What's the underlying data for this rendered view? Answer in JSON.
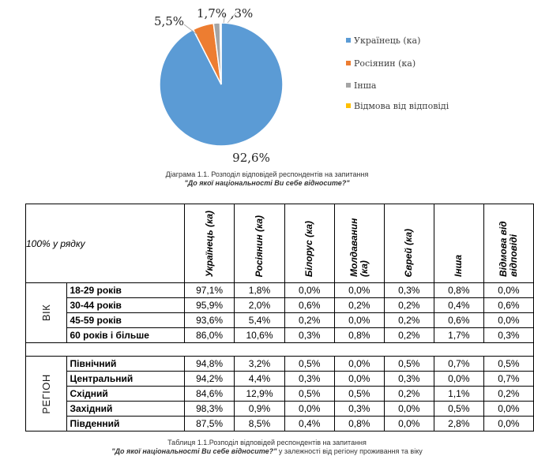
{
  "chart_data": {
    "type": "pie",
    "categories": [
      "Українець (ка)",
      "Росіянин (ка)",
      "Інша",
      "Відмова від відповіді"
    ],
    "values": [
      92.6,
      5.5,
      1.7,
      0.3
    ],
    "value_labels": [
      "92,6%",
      "5,5%",
      "1,7%",
      ",3%"
    ],
    "colors": [
      "#5B9BD5",
      "#ED7D31",
      "#A5A5A5",
      "#FFC000"
    ],
    "legend_position": "right"
  },
  "diagram_caption": {
    "line1": "Діаграма 1.1. Розподіл відповідей респондентів на запитання",
    "line2": "\"До якої національності Ви себе відносите?\""
  },
  "table": {
    "corner": "100%  у рядку",
    "headers": [
      "Українець (ка)",
      "Росіянин (ка)",
      "Білорус (ка)",
      "Молдаванин (ка)",
      "Єврей (ка)",
      "Інша",
      "Відмова від відповіді"
    ],
    "groups": [
      {
        "name": "ВІК",
        "rows": [
          {
            "label": "18-29 років",
            "values": [
              "97,1%",
              "1,8%",
              "0,0%",
              "0,0%",
              "0,3%",
              "0,8%",
              "0,0%"
            ]
          },
          {
            "label": "30-44 років",
            "values": [
              "95,9%",
              "2,0%",
              "0,6%",
              "0,2%",
              "0,2%",
              "0,4%",
              "0,6%"
            ]
          },
          {
            "label": "45-59 років",
            "values": [
              "93,6%",
              "5,4%",
              "0,2%",
              "0,0%",
              "0,2%",
              "0,6%",
              "0,0%"
            ]
          },
          {
            "label": "60 років і більше",
            "values": [
              "86,0%",
              "10,6%",
              "0,3%",
              "0,8%",
              "0,2%",
              "1,7%",
              "0,3%"
            ]
          }
        ]
      },
      {
        "name": "РЕГІОН",
        "rows": [
          {
            "label": "Північний",
            "values": [
              "94,8%",
              "3,2%",
              "0,5%",
              "0,0%",
              "0,5%",
              "0,7%",
              "0,5%"
            ]
          },
          {
            "label": "Центральний",
            "values": [
              "94,2%",
              "4,4%",
              "0,3%",
              "0,0%",
              "0,3%",
              "0,0%",
              "0,7%"
            ]
          },
          {
            "label": "Східний",
            "values": [
              "84,6%",
              "12,9%",
              "0,5%",
              "0,5%",
              "0,2%",
              "1,1%",
              "0,2%"
            ]
          },
          {
            "label": "Західний",
            "values": [
              "98,3%",
              "0,9%",
              "0,0%",
              "0,3%",
              "0,0%",
              "0,5%",
              "0,0%"
            ]
          },
          {
            "label": "Південний",
            "values": [
              "87,5%",
              "8,5%",
              "0,4%",
              "0,8%",
              "0,0%",
              "2,8%",
              "0,0%"
            ]
          }
        ]
      }
    ]
  },
  "table_caption": {
    "line1": "Таблиця 1.1.Розподіл відповідей респондентів на запитання",
    "line2_bold": "\"До якої національності Ви себе відносите?\"",
    "line2_rest": " у залежності від регіону проживання та віку"
  }
}
